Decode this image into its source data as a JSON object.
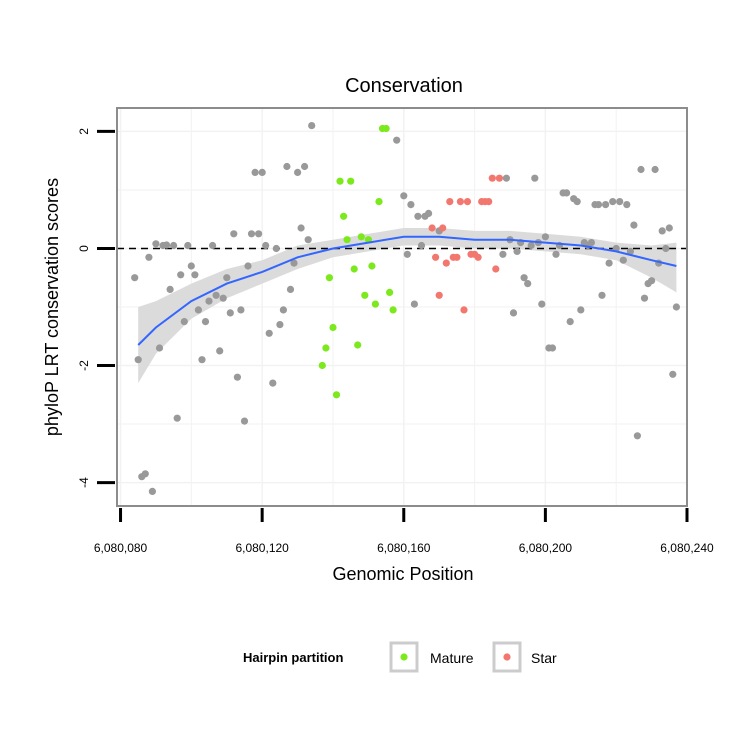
{
  "chart_data": {
    "type": "scatter",
    "title": "Conservation",
    "xlabel": "Genomic Position",
    "ylabel": "phyloP LRT conservation scores",
    "xlim": [
      6080079,
      6080240
    ],
    "ylim": [
      -4.4,
      2.4
    ],
    "x_ticks": [
      6080080,
      6080120,
      6080160,
      6080200,
      6080240
    ],
    "x_tick_labels": [
      "6,080,080",
      "6,080,120",
      "6,080,160",
      "6,080,200",
      "6,080,240"
    ],
    "y_ticks": [
      -4,
      -2,
      0,
      2
    ],
    "y_tick_labels": [
      "-4",
      "-2",
      "0",
      "2"
    ],
    "reference_line": {
      "y": 0,
      "style": "dashed"
    },
    "legend": {
      "title": "Hairpin partition",
      "position": "bottom",
      "entries": [
        {
          "label": "Mature",
          "color": "#7be91c"
        },
        {
          "label": "Star",
          "color": "#f2776f"
        }
      ]
    },
    "colors": {
      "Other": "#999999",
      "Mature": "#7be91c",
      "Star": "#f2776f",
      "smooth": "#3366ff",
      "ribbon": "#d9d9d9",
      "panel_border": "#8c8c8c",
      "grid": "#f2f2f2"
    },
    "series": [
      {
        "name": "Other",
        "points": [
          [
            6080084,
            -0.5
          ],
          [
            6080085,
            -1.9
          ],
          [
            6080086,
            -3.9
          ],
          [
            6080087,
            -3.85
          ],
          [
            6080088,
            -0.15
          ],
          [
            6080089,
            -4.15
          ],
          [
            6080090,
            0.08
          ],
          [
            6080091,
            -1.7
          ],
          [
            6080092,
            0.05
          ],
          [
            6080093,
            0.06
          ],
          [
            6080094,
            -0.7
          ],
          [
            6080095,
            0.05
          ],
          [
            6080096,
            -2.9
          ],
          [
            6080097,
            -0.45
          ],
          [
            6080098,
            -1.25
          ],
          [
            6080099,
            0.05
          ],
          [
            6080100,
            -0.3
          ],
          [
            6080101,
            -0.45
          ],
          [
            6080102,
            -1.05
          ],
          [
            6080103,
            -1.9
          ],
          [
            6080104,
            -1.25
          ],
          [
            6080105,
            -0.9
          ],
          [
            6080106,
            0.05
          ],
          [
            6080107,
            -0.8
          ],
          [
            6080108,
            -1.75
          ],
          [
            6080109,
            -0.85
          ],
          [
            6080110,
            -0.5
          ],
          [
            6080111,
            -1.1
          ],
          [
            6080112,
            0.25
          ],
          [
            6080113,
            -2.2
          ],
          [
            6080114,
            -1.05
          ],
          [
            6080115,
            -2.95
          ],
          [
            6080116,
            -0.3
          ],
          [
            6080117,
            0.25
          ],
          [
            6080118,
            1.3
          ],
          [
            6080119,
            0.25
          ],
          [
            6080120,
            1.3
          ],
          [
            6080121,
            0.05
          ],
          [
            6080122,
            -1.45
          ],
          [
            6080123,
            -2.3
          ],
          [
            6080124,
            0.0
          ],
          [
            6080125,
            -1.3
          ],
          [
            6080126,
            -1.05
          ],
          [
            6080127,
            1.4
          ],
          [
            6080128,
            -0.7
          ],
          [
            6080129,
            -0.25
          ],
          [
            6080130,
            1.3
          ],
          [
            6080131,
            0.35
          ],
          [
            6080132,
            1.4
          ],
          [
            6080133,
            0.15
          ],
          [
            6080134,
            2.1
          ],
          [
            6080158,
            1.85
          ],
          [
            6080160,
            0.9
          ],
          [
            6080161,
            -0.1
          ],
          [
            6080162,
            0.75
          ],
          [
            6080163,
            -0.95
          ],
          [
            6080164,
            0.55
          ],
          [
            6080165,
            0.05
          ],
          [
            6080166,
            0.55
          ],
          [
            6080167,
            0.6
          ],
          [
            6080170,
            0.3
          ],
          [
            6080188,
            -0.1
          ],
          [
            6080189,
            1.2
          ],
          [
            6080190,
            0.15
          ],
          [
            6080191,
            -1.1
          ],
          [
            6080192,
            -0.05
          ],
          [
            6080193,
            0.1
          ],
          [
            6080194,
            -0.5
          ],
          [
            6080195,
            -0.6
          ],
          [
            6080196,
            0.05
          ],
          [
            6080197,
            1.2
          ],
          [
            6080198,
            0.1
          ],
          [
            6080199,
            -0.95
          ],
          [
            6080200,
            0.2
          ],
          [
            6080201,
            -1.7
          ],
          [
            6080202,
            -1.7
          ],
          [
            6080203,
            -0.1
          ],
          [
            6080204,
            0.05
          ],
          [
            6080205,
            0.95
          ],
          [
            6080206,
            0.95
          ],
          [
            6080207,
            -1.25
          ],
          [
            6080208,
            0.85
          ],
          [
            6080209,
            0.8
          ],
          [
            6080210,
            -1.05
          ],
          [
            6080211,
            0.1
          ],
          [
            6080212,
            0.05
          ],
          [
            6080213,
            0.1
          ],
          [
            6080214,
            0.75
          ],
          [
            6080215,
            0.75
          ],
          [
            6080216,
            -0.8
          ],
          [
            6080217,
            0.75
          ],
          [
            6080218,
            -0.25
          ],
          [
            6080219,
            0.8
          ],
          [
            6080220,
            0.0
          ],
          [
            6080221,
            0.8
          ],
          [
            6080222,
            -0.2
          ],
          [
            6080223,
            0.75
          ],
          [
            6080224,
            -0.05
          ],
          [
            6080225,
            0.4
          ],
          [
            6080226,
            -3.2
          ],
          [
            6080227,
            1.35
          ],
          [
            6080228,
            -0.85
          ],
          [
            6080229,
            -0.6
          ],
          [
            6080230,
            -0.55
          ],
          [
            6080231,
            1.35
          ],
          [
            6080232,
            -0.25
          ],
          [
            6080233,
            0.3
          ],
          [
            6080234,
            0.0
          ],
          [
            6080235,
            0.35
          ],
          [
            6080236,
            -2.15
          ],
          [
            6080237,
            -1.0
          ]
        ]
      },
      {
        "name": "Mature",
        "points": [
          [
            6080137,
            -2.0
          ],
          [
            6080138,
            -1.7
          ],
          [
            6080139,
            -0.5
          ],
          [
            6080140,
            -1.35
          ],
          [
            6080141,
            -2.5
          ],
          [
            6080142,
            1.15
          ],
          [
            6080143,
            0.55
          ],
          [
            6080144,
            0.15
          ],
          [
            6080145,
            1.15
          ],
          [
            6080146,
            -0.35
          ],
          [
            6080147,
            -1.65
          ],
          [
            6080148,
            0.2
          ],
          [
            6080149,
            -0.8
          ],
          [
            6080150,
            0.15
          ],
          [
            6080151,
            -0.3
          ],
          [
            6080152,
            -0.95
          ],
          [
            6080153,
            0.8
          ],
          [
            6080154,
            2.05
          ],
          [
            6080155,
            2.05
          ],
          [
            6080156,
            -0.75
          ],
          [
            6080157,
            -1.05
          ]
        ]
      },
      {
        "name": "Star",
        "points": [
          [
            6080168,
            0.35
          ],
          [
            6080169,
            -0.15
          ],
          [
            6080170,
            -0.8
          ],
          [
            6080171,
            0.35
          ],
          [
            6080172,
            -0.25
          ],
          [
            6080173,
            0.8
          ],
          [
            6080174,
            -0.15
          ],
          [
            6080175,
            -0.15
          ],
          [
            6080176,
            0.8
          ],
          [
            6080177,
            -1.05
          ],
          [
            6080178,
            0.8
          ],
          [
            6080179,
            -0.1
          ],
          [
            6080180,
            -0.1
          ],
          [
            6080181,
            -0.15
          ],
          [
            6080182,
            0.8
          ],
          [
            6080183,
            0.8
          ],
          [
            6080184,
            0.8
          ],
          [
            6080185,
            1.2
          ],
          [
            6080186,
            -0.35
          ],
          [
            6080187,
            1.2
          ]
        ]
      }
    ],
    "smooth": {
      "x": [
        6080085,
        6080090,
        6080100,
        6080110,
        6080120,
        6080130,
        6080140,
        6080150,
        6080160,
        6080170,
        6080180,
        6080190,
        6080200,
        6080210,
        6080220,
        6080230,
        6080237
      ],
      "y": [
        -1.65,
        -1.35,
        -0.9,
        -0.6,
        -0.4,
        -0.15,
        0.0,
        0.1,
        0.2,
        0.2,
        0.15,
        0.15,
        0.1,
        0.05,
        -0.05,
        -0.2,
        -0.3
      ],
      "upper": [
        -1.0,
        -0.9,
        -0.6,
        -0.35,
        -0.2,
        0.05,
        0.15,
        0.25,
        0.35,
        0.35,
        0.3,
        0.3,
        0.25,
        0.2,
        0.1,
        0.05,
        0.1
      ],
      "lower": [
        -2.3,
        -1.8,
        -1.2,
        -0.85,
        -0.6,
        -0.35,
        -0.15,
        -0.05,
        0.05,
        0.05,
        0.0,
        0.0,
        -0.05,
        -0.1,
        -0.2,
        -0.5,
        -0.75
      ]
    }
  }
}
